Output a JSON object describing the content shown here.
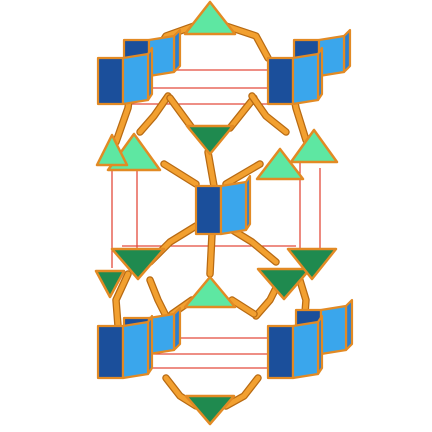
{
  "diagram": {
    "kind": "polyhedral-framework-model",
    "components": {
      "rods": {
        "color": "#f2a030",
        "edge": "#b86a12"
      },
      "cell_edges": {
        "color": "#e34a3c"
      },
      "triangles_up": {
        "color": "#5ee7a2",
        "edge": "#e28a24"
      },
      "triangles_down": {
        "color": "#1f8a4f",
        "edge": "#e28a24"
      },
      "prisms": {
        "face_dark": "#1b4f9b",
        "face_light": "#3aa6ec",
        "face_mid": "#2b7fd0",
        "edge": "#e28a24"
      }
    }
  }
}
